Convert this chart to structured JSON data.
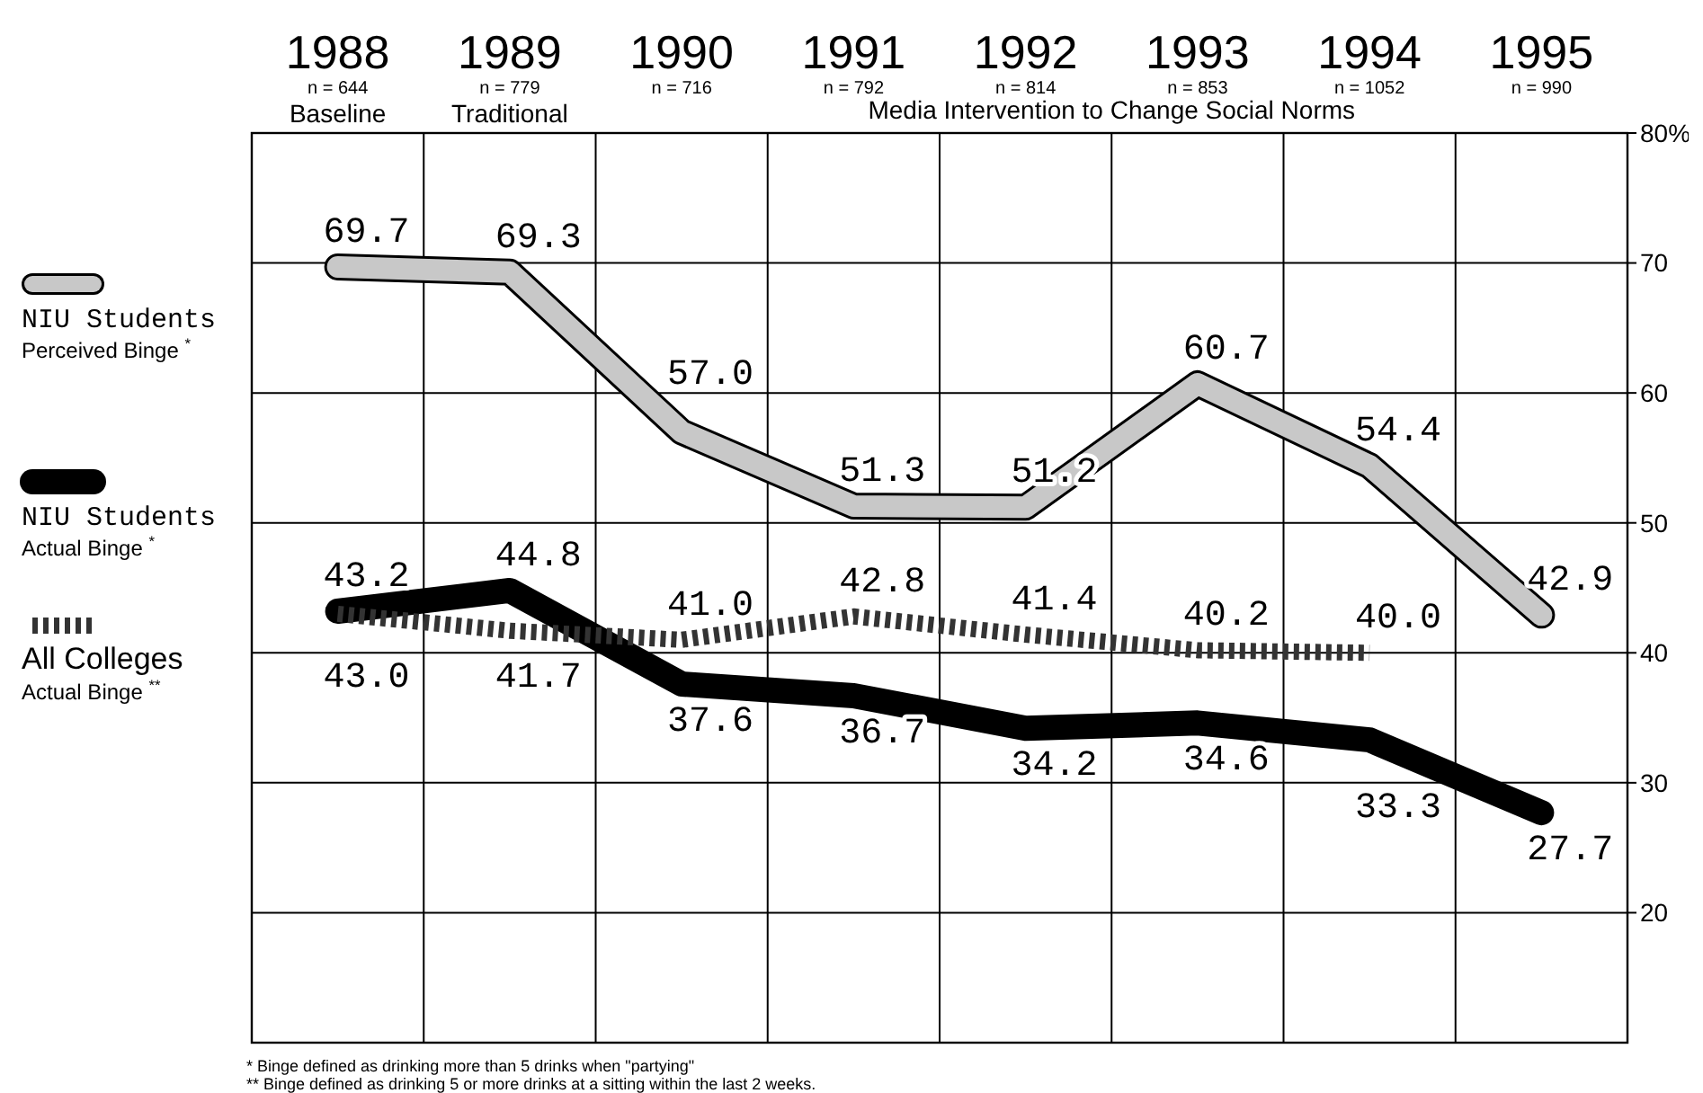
{
  "chart_data": {
    "type": "line",
    "categories": [
      "1988",
      "1989",
      "1990",
      "1991",
      "1992",
      "1993",
      "1994",
      "1995"
    ],
    "series": [
      {
        "name": "NIU Students\nPerceived Binge $^{*}$",
        "color": "#c8c8c8",
        "values": [
          69.7,
          69.3,
          57.0,
          51.3,
          51.2,
          60.7,
          54.4,
          42.9
        ],
        "value_labels": [
          "69.7",
          "69.3",
          "57.0",
          "51.3",
          "51.2",
          "60.7",
          "54.4",
          "42.9"
        ]
      },
      {
        "name": "NIU Students\nActual Binge $^{*}$",
        "color": "#000000",
        "values": [
          43.2,
          44.8,
          37.6,
          36.7,
          34.2,
          34.6,
          33.3,
          27.7
        ],
        "value_labels": [
          "43.2",
          "44.8",
          "37.6",
          "36.7",
          "34.2",
          "34.6",
          "33.3",
          "27.7"
        ]
      },
      {
        "name": "All Colleges\nActual Binge $^{**}$",
        "color": "#333333",
        "line_style": "dashed",
        "values": [
          43.0,
          41.7,
          41.0,
          42.8,
          41.4,
          40.2,
          40.0,
          null
        ],
        "value_labels": [
          "43.0",
          "41.7",
          "41.0",
          "42.8",
          "41.4",
          "40.2",
          "40.0",
          null
        ]
      }
    ],
    "ylim": [
      10,
      80
    ],
    "yticks": [
      20,
      30,
      40,
      50,
      60,
      70,
      {
        "value": 80,
        "label": "80%"
      }
    ],
    "grid": true,
    "legend": "left",
    "marker": "none",
    "annotations": [
      "n = 644",
      "n = 779",
      "n = 716",
      "n = 792",
      "n = 814",
      "n = 853",
      "n = 1052",
      "n = 990",
      "Baseline",
      "Traditional",
      "Media Intervention to Change Social Norms",
      "* Binge defined as drinking more than 5 drinks when \"partying\"",
      "** Binge defined as drinking 5 or more drinks at a sitting within the last 2 weeks."
    ]
  }
}
